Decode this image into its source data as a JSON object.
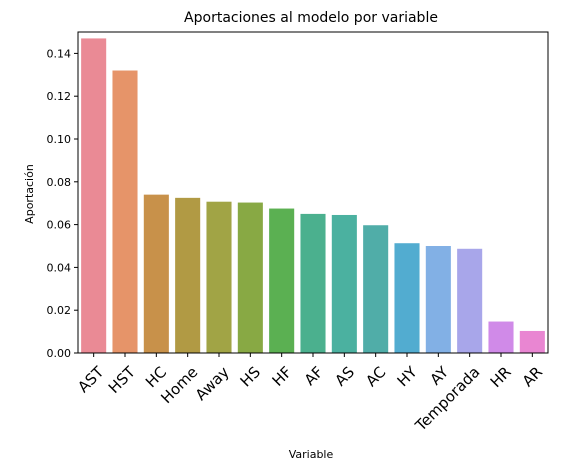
{
  "chart_data": {
    "type": "bar",
    "title": "Aportaciones al modelo por variable",
    "xlabel": "Variable",
    "ylabel": "Aportación",
    "ylim": [
      0,
      0.15
    ],
    "yticks": [
      "0.00",
      "0.02",
      "0.04",
      "0.06",
      "0.08",
      "0.10",
      "0.12",
      "0.14"
    ],
    "categories": [
      "AST",
      "HST",
      "HC",
      "Home",
      "Away",
      "HS",
      "HF",
      "AF",
      "AS",
      "AC",
      "HY",
      "AY",
      "Temporada",
      "HR",
      "AR"
    ],
    "values": [
      0.147,
      0.132,
      0.074,
      0.0725,
      0.0707,
      0.0703,
      0.0675,
      0.065,
      0.0645,
      0.0597,
      0.0513,
      0.05,
      0.0487,
      0.0147,
      0.0103
    ],
    "colors": [
      "#ea8a95",
      "#e69469",
      "#c8914a",
      "#b19a44",
      "#a1a445",
      "#88a944",
      "#5bb052",
      "#4bb08e",
      "#4bb1a0",
      "#50ada8",
      "#52acd0",
      "#82b0e5",
      "#a8a6ea",
      "#d08ae8",
      "#e986d2",
      "#e887b5"
    ],
    "grid": false,
    "legend": "none"
  }
}
